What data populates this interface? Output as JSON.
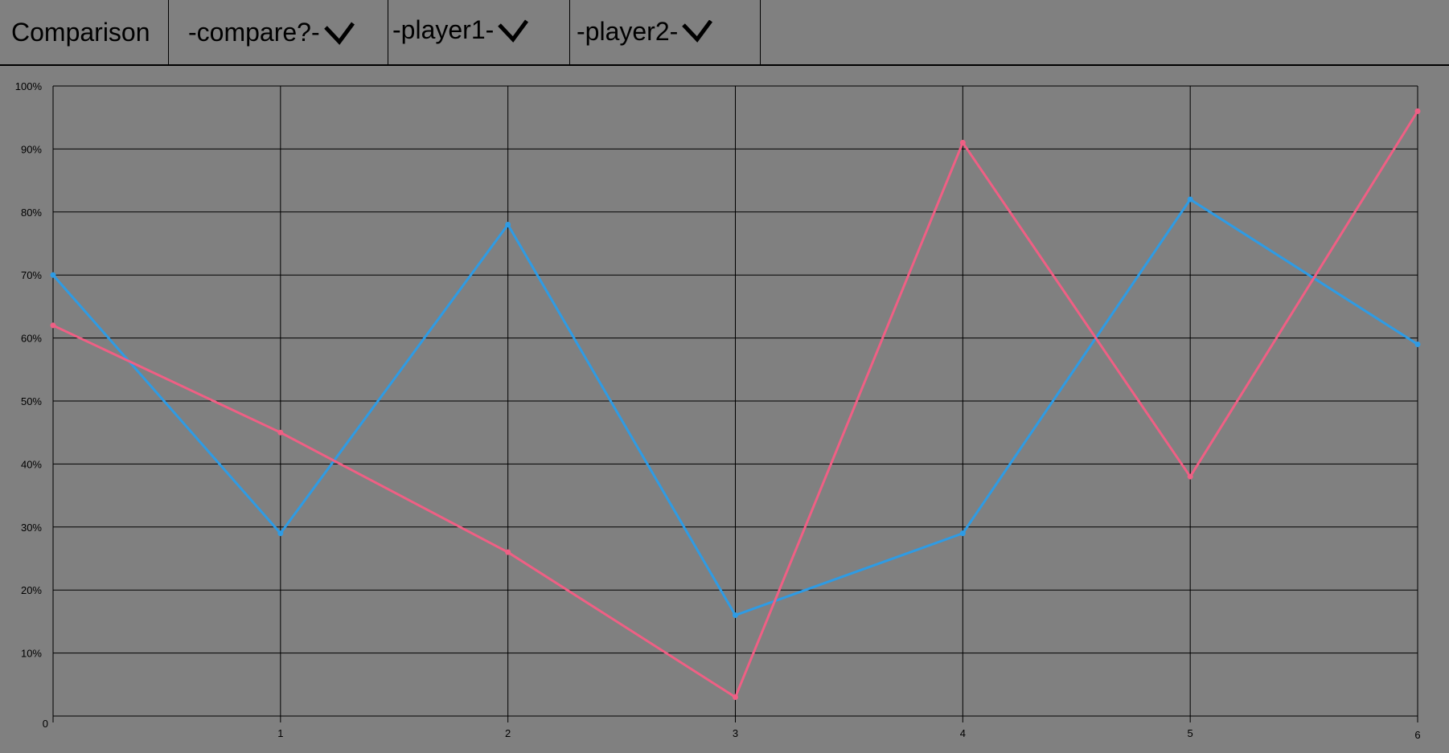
{
  "topbar": {
    "title": "Comparison",
    "dropdowns": [
      {
        "label": "-compare?-",
        "icon": "chevron-down-icon"
      },
      {
        "label": "-player1-",
        "icon": "chevron-down-icon"
      },
      {
        "label": "-player2-",
        "icon": "chevron-down-icon"
      }
    ]
  },
  "colors": {
    "background": "#808080",
    "series_blue": "#2e9be4",
    "series_pink": "#ef5f84",
    "grid": "#000000"
  },
  "chart_data": {
    "type": "line",
    "x": [
      0,
      1,
      2,
      3,
      4,
      5,
      6
    ],
    "x_tick_labels": [
      "0",
      "1",
      "2",
      "3",
      "4",
      "5",
      "6"
    ],
    "y_tick_labels": [
      "10%",
      "20%",
      "30%",
      "40%",
      "50%",
      "60%",
      "70%",
      "80%",
      "90%",
      "100%"
    ],
    "xlim": [
      0,
      6
    ],
    "ylim": [
      0,
      100
    ],
    "grid": true,
    "series": [
      {
        "color": "#2e9be4",
        "values": [
          70,
          29,
          78,
          16,
          29,
          82,
          59
        ]
      },
      {
        "color": "#ef5f84",
        "values": [
          62,
          45,
          26,
          3,
          91,
          38,
          96
        ]
      }
    ]
  }
}
